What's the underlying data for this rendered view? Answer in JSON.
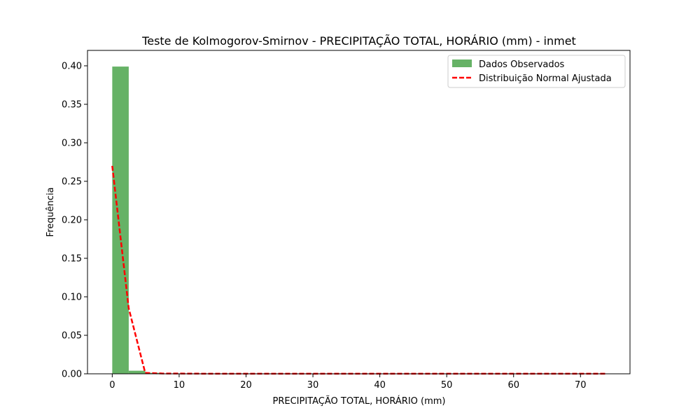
{
  "chart_data": {
    "type": "bar",
    "title": "Teste de Kolmogorov-Smirnov - PRECIPITAÇÃO TOTAL, HORÁRIO (mm) - inmet",
    "xlabel": "PRECIPITAÇÃO TOTAL, HORÁRIO (mm)",
    "ylabel": "Frequência",
    "xlim": [
      -3.7,
      77.4
    ],
    "ylim": [
      0,
      0.42
    ],
    "x_ticks": [
      0,
      10,
      20,
      30,
      40,
      50,
      60,
      70
    ],
    "y_ticks": [
      0.0,
      0.05,
      0.1,
      0.15,
      0.2,
      0.25,
      0.3,
      0.35,
      0.4
    ],
    "grid": false,
    "legend_position": "top-right",
    "series": [
      {
        "name": "Dados Observados",
        "kind": "histogram",
        "color": "#66b266",
        "bin_edges": [
          0,
          2.464,
          4.928,
          7.392,
          9.856,
          12.32,
          14.784,
          17.248,
          19.712,
          22.176,
          24.64,
          27.104,
          29.568,
          32.032,
          34.496,
          36.96,
          39.424,
          41.888,
          44.352,
          46.816,
          49.28,
          51.744,
          54.208,
          56.672,
          59.136,
          61.6,
          64.064,
          66.528,
          68.992,
          71.456,
          73.92
        ],
        "values": [
          0.399,
          0.004,
          0.0012,
          0.0004,
          0.0003,
          0.0002,
          0.0001,
          0.0001,
          0.0001,
          0.0001,
          0.0001,
          0.0001,
          0.0001,
          0.0001,
          0.0001,
          0.0001,
          0.0001,
          0.0001,
          0.0001,
          0.0001,
          0.0001,
          0.0001,
          0.0001,
          0.0001,
          0.0001,
          0.0001,
          0.0001,
          0.0001,
          0.0001,
          0.0001
        ]
      },
      {
        "name": "Distribuição Normal Ajustada",
        "kind": "line",
        "color": "#ff0000",
        "dashed": true,
        "x": [
          0,
          2.464,
          4.928,
          7.392,
          9.856,
          12.32,
          14.784,
          17.248,
          19.712,
          22.176,
          24.64,
          27.104,
          29.568,
          32.032,
          34.496,
          36.96,
          39.424,
          41.888,
          44.352,
          46.816,
          49.28,
          51.744,
          54.208,
          56.672,
          59.136,
          61.6,
          64.064,
          66.528,
          68.992,
          71.456,
          73.92
        ],
        "y": [
          0.27,
          0.085,
          0.0012,
          0.0004,
          0.0003,
          0.0002,
          0.0001,
          0.0001,
          0.0001,
          0.0001,
          0.0001,
          0.0001,
          0.0001,
          0.0001,
          0.0001,
          0.0001,
          0.0001,
          0.0001,
          0.0001,
          0.0001,
          0.0001,
          0.0001,
          0.0001,
          0.0001,
          0.0001,
          0.0001,
          0.0001,
          0.0001,
          0.0001,
          0.0001,
          0.0001
        ]
      }
    ]
  }
}
